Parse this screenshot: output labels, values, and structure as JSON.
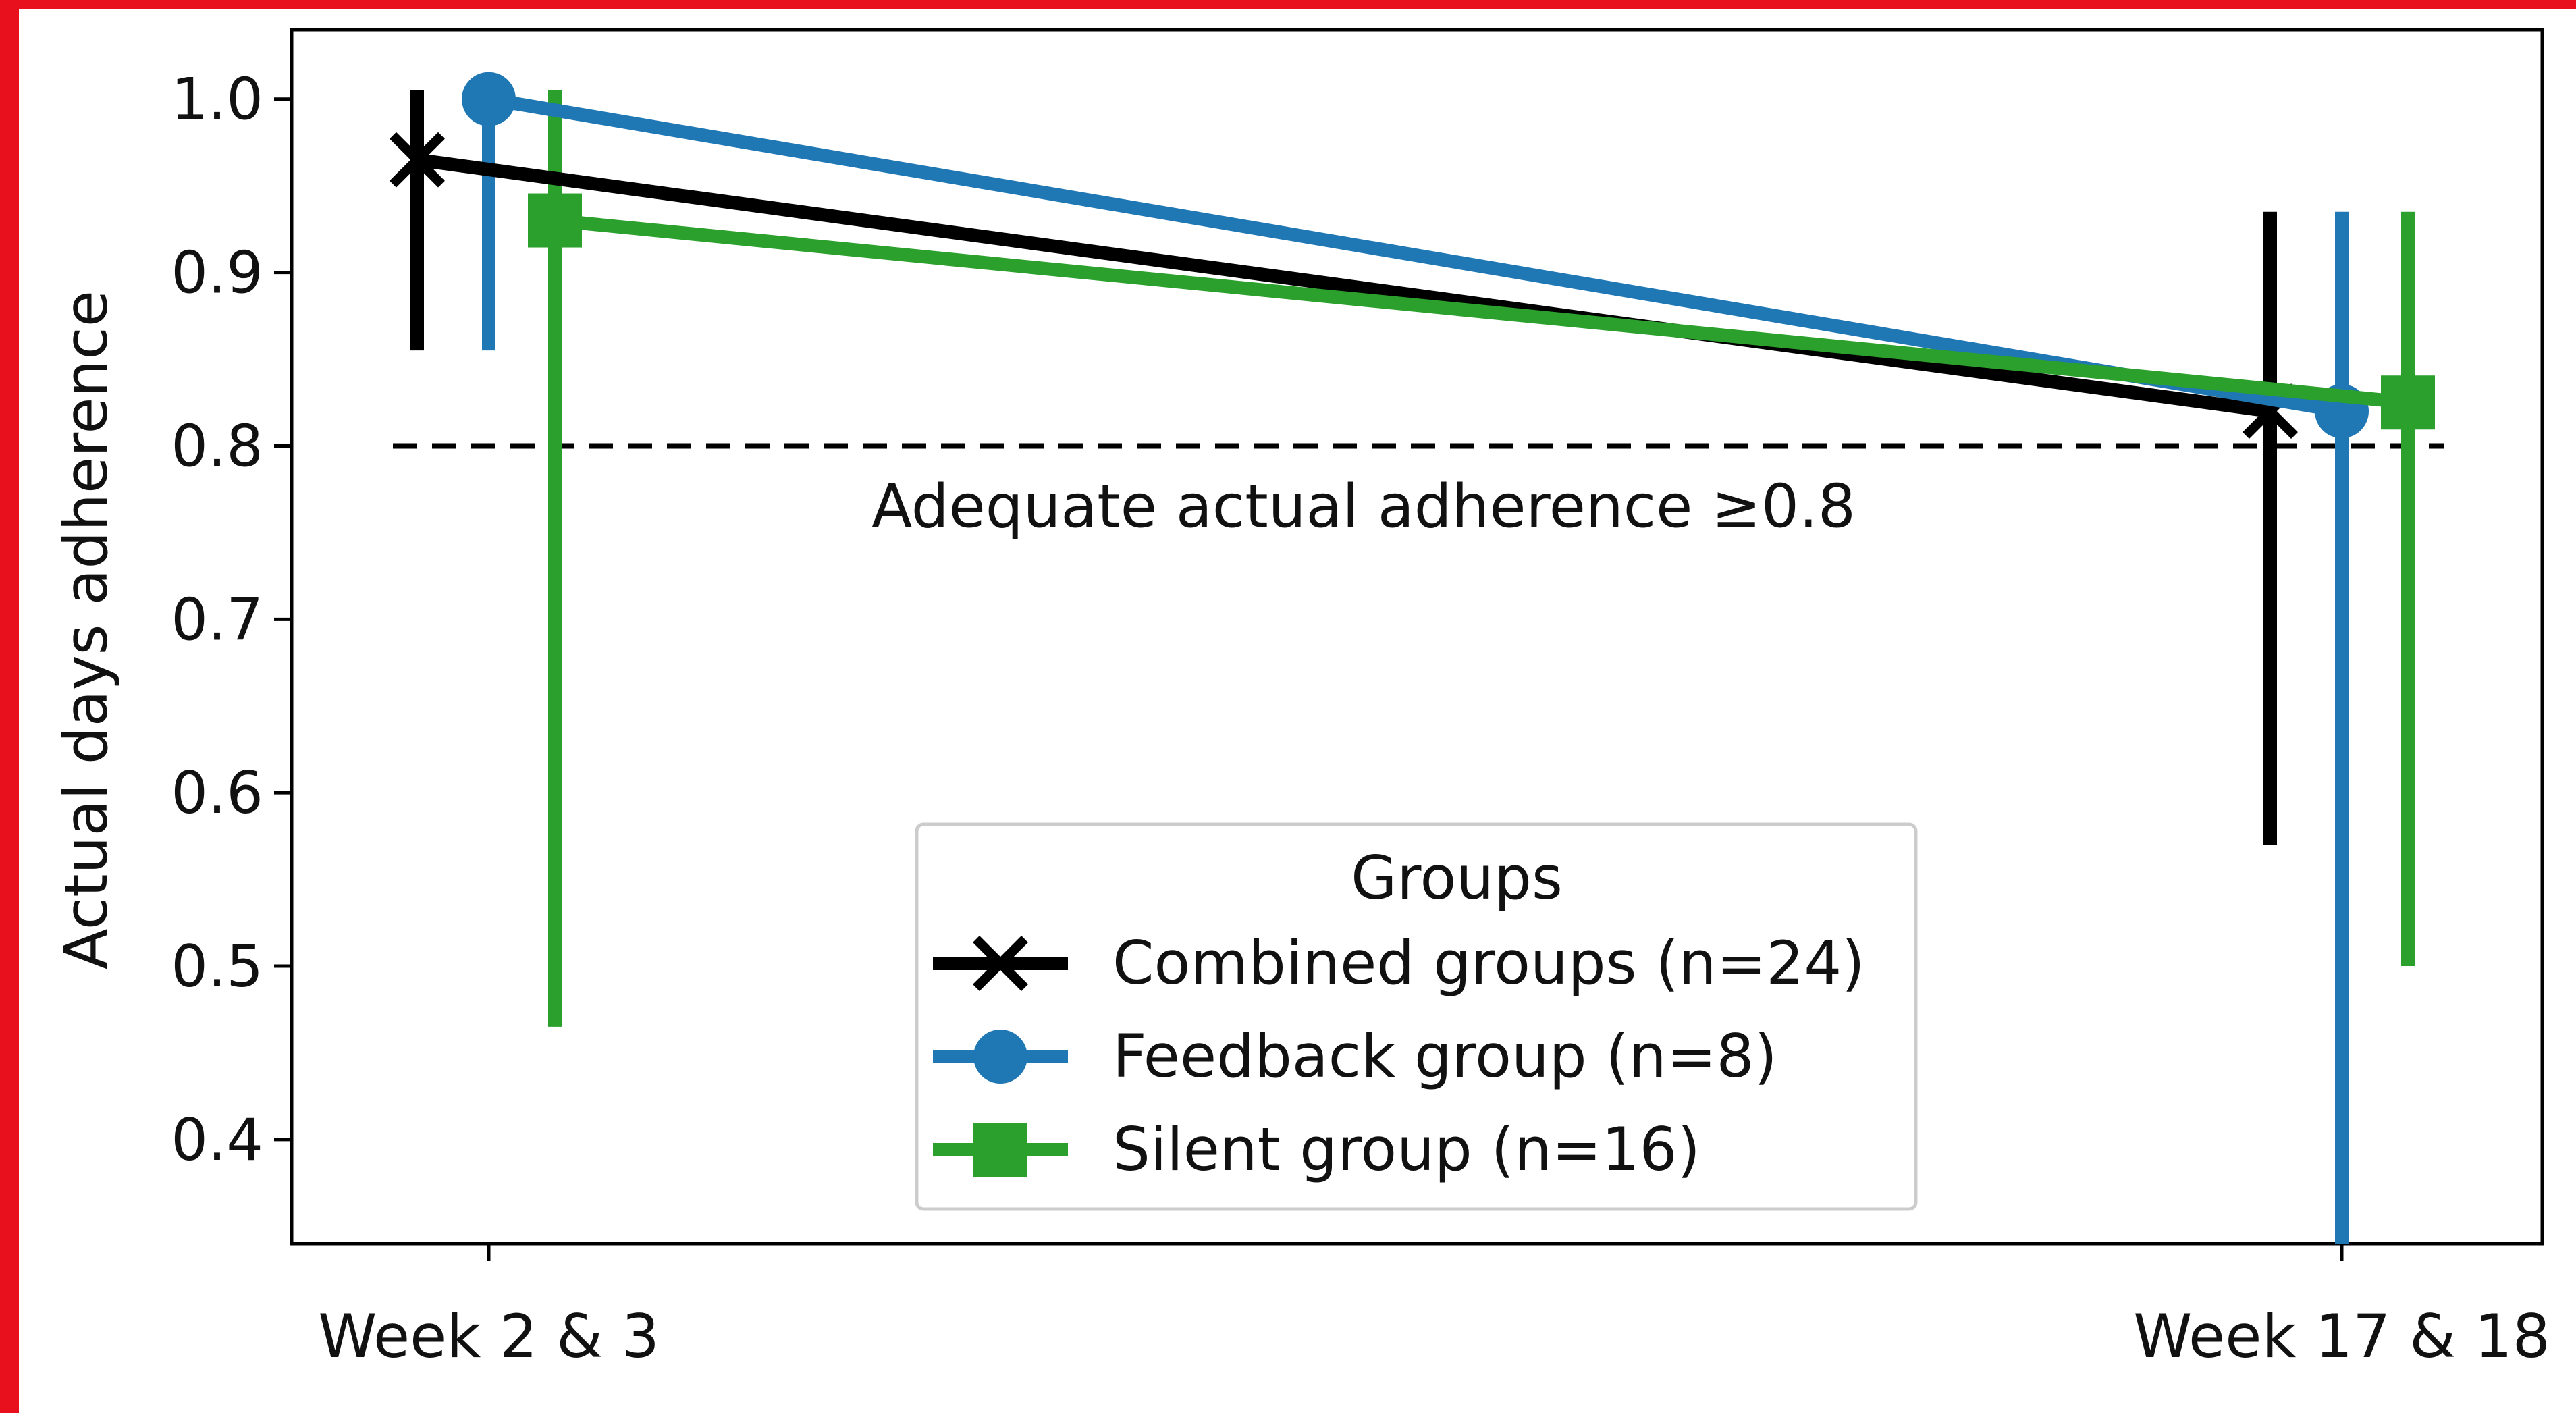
{
  "chart_data": {
    "type": "line",
    "title": "",
    "xlabel": "",
    "ylabel": "Actual days adherence",
    "categories": [
      "Week 2 & 3",
      "Week 17 & 18"
    ],
    "ylim": [
      0.34,
      1.04
    ],
    "yticks": [
      "0.4",
      "0.5",
      "0.6",
      "0.7",
      "0.8",
      "0.9",
      "1.0"
    ],
    "grid": false,
    "reference_line": {
      "y": 0.8,
      "style": "dashed",
      "color": "#000000",
      "label": "Adequate actual adherence ≥0.8"
    },
    "series": [
      {
        "name": "Combined groups (n=24)",
        "marker": "x",
        "color": "#000000",
        "values": [
          0.965,
          0.82
        ],
        "lower": [
          0.855,
          0.57
        ],
        "upper": [
          1.005,
          0.935
        ]
      },
      {
        "name": "Feedback group (n=8)",
        "marker": "circle",
        "color": "#1f77b4",
        "values": [
          1.0,
          0.82
        ],
        "lower": [
          0.855,
          0.34
        ],
        "upper": [
          1.0,
          0.935
        ]
      },
      {
        "name": "Silent group (n=16)",
        "marker": "square",
        "color": "#2ca02c",
        "values": [
          0.93,
          0.825
        ],
        "lower": [
          0.465,
          0.5
        ],
        "upper": [
          1.005,
          0.935
        ]
      }
    ],
    "legend": {
      "title": "Groups",
      "position": "lower-center"
    }
  }
}
